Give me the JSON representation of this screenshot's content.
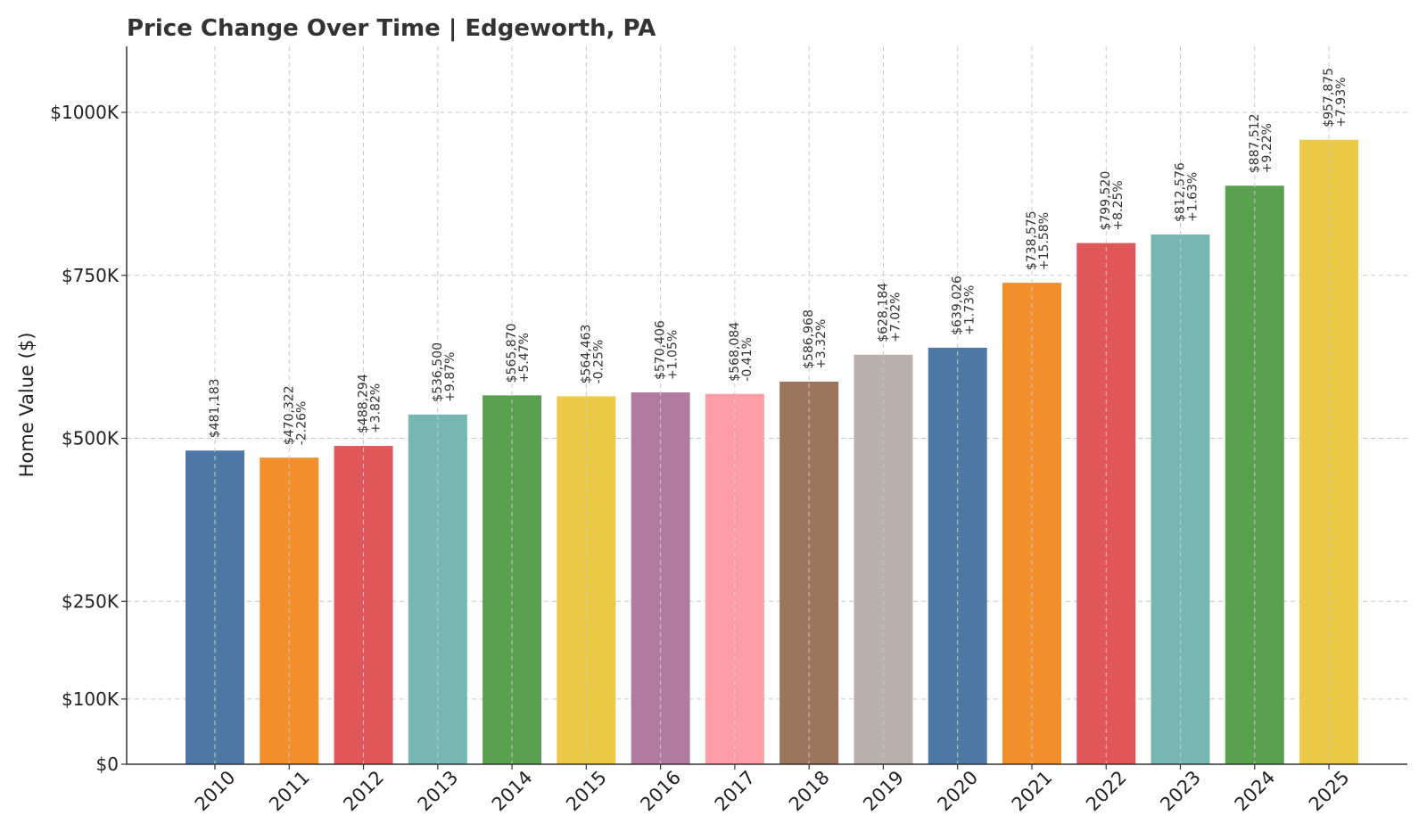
{
  "chart_data": {
    "type": "bar",
    "title": "Price Change Over Time | Edgeworth, PA",
    "xlabel": "",
    "ylabel": "Home Value ($)",
    "ylim": [
      0,
      1100000
    ],
    "grid": true,
    "y_ticks": [
      {
        "value": 0,
        "label": "$0"
      },
      {
        "value": 100000,
        "label": "$100K"
      },
      {
        "value": 250000,
        "label": "$250K"
      },
      {
        "value": 500000,
        "label": "$500K"
      },
      {
        "value": 750000,
        "label": "$750K"
      },
      {
        "value": 1000000,
        "label": "$1000K"
      }
    ],
    "categories": [
      "2010",
      "2011",
      "2012",
      "2013",
      "2014",
      "2015",
      "2016",
      "2017",
      "2018",
      "2019",
      "2020",
      "2021",
      "2022",
      "2023",
      "2024",
      "2025"
    ],
    "values": [
      481183,
      470322,
      488294,
      536500,
      565870,
      564463,
      570406,
      568084,
      586968,
      628184,
      639026,
      738575,
      799520,
      812576,
      887512,
      957875
    ],
    "value_labels": [
      "$481,183",
      "$470,322",
      "$488,294",
      "$536,500",
      "$565,870",
      "$564,463",
      "$570,406",
      "$568,084",
      "$586,968",
      "$628,184",
      "$639,026",
      "$738,575",
      "$799,520",
      "$812,576",
      "$887,512",
      "$957,875"
    ],
    "change_labels": [
      "",
      "-2.26%",
      "+3.82%",
      "+9.87%",
      "+5.47%",
      "-0.25%",
      "+1.05%",
      "-0.41%",
      "+3.32%",
      "+7.02%",
      "+1.73%",
      "+15.58%",
      "+8.25%",
      "+1.63%",
      "+9.22%",
      "+7.93%"
    ],
    "colors": [
      "#4e79a7",
      "#f28e2b",
      "#e15759",
      "#76b7b2",
      "#59a14f",
      "#edc948",
      "#b07aa1",
      "#ff9da7",
      "#9c755f",
      "#bab0ac",
      "#4e79a7",
      "#f28e2b",
      "#e15759",
      "#76b7b2",
      "#59a14f",
      "#edc948"
    ]
  }
}
